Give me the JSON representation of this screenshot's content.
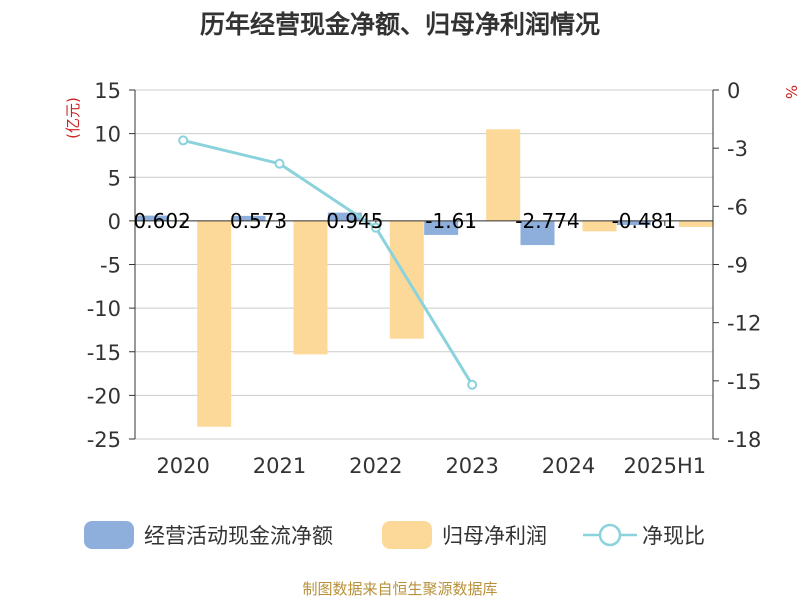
{
  "chart_data": {
    "type": "bar",
    "title": "历年经营现金净额、归母净利润情况",
    "categories": [
      "2020",
      "2021",
      "2022",
      "2023",
      "2024",
      "2025H1"
    ],
    "left_axis": {
      "label": "(亿元)",
      "ylim": [
        -25,
        15
      ],
      "ticks": [
        15,
        10,
        5,
        0,
        -5,
        -10,
        -15,
        -20,
        -25
      ]
    },
    "right_axis": {
      "label": "%",
      "ylim": [
        -18,
        0
      ],
      "ticks": [
        0,
        -3,
        -6,
        -9,
        -12,
        -15,
        -18
      ]
    },
    "series": [
      {
        "name": "经营活动现金流净额",
        "kind": "bar",
        "axis": "left",
        "color": "#8eaedb",
        "values": [
          0.602,
          0.573,
          0.945,
          -1.61,
          -2.774,
          -0.481
        ],
        "labels": [
          "0.602",
          "0.573",
          "0.945",
          "-1.61",
          "-2.774",
          "-0.481"
        ]
      },
      {
        "name": "归母净利润",
        "kind": "bar",
        "axis": "left",
        "color": "#fdd999",
        "values": [
          -23.6,
          -15.3,
          -13.5,
          10.5,
          -1.2,
          -0.7
        ]
      },
      {
        "name": "净现比",
        "kind": "line",
        "axis": "right",
        "color": "#8bd3dc",
        "values": [
          -2.6,
          -3.8,
          -7.1,
          -15.2,
          null,
          null
        ]
      }
    ],
    "grid": true,
    "legend_position": "bottom"
  },
  "footer": {
    "source": "制图数据来自恒生聚源数据库"
  }
}
